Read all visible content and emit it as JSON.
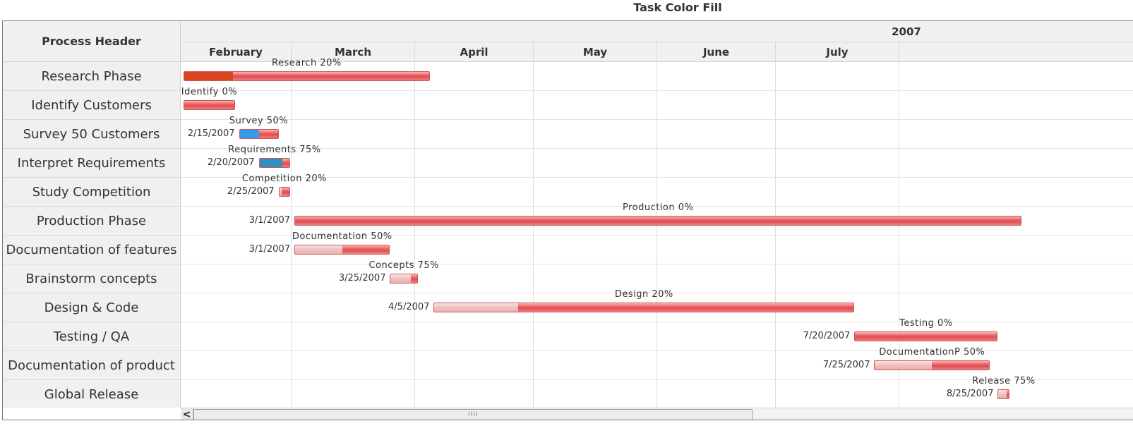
{
  "title": "Task Color Fill",
  "process_header": "Process Header",
  "colors": {
    "bar": "#e8575a",
    "research_done": "#d9451f",
    "survey_done": "#3a9ae8",
    "requirements_done": "#2f8fc0",
    "light_done": "#f3c9c9"
  },
  "chart_data": {
    "type": "gantt",
    "title": "Task Color Fill",
    "year": "2007",
    "months": [
      "February",
      "March",
      "April",
      "May",
      "June",
      "July"
    ],
    "tasks": [
      {
        "process": "Research Phase",
        "label": "Research 20%",
        "start": "2007-02-01",
        "end": "2007-04-04",
        "percent": 20,
        "date_label": "",
        "fill": "research_done"
      },
      {
        "process": "Identify Customers",
        "label": "Identify 0%",
        "start": "2007-02-01",
        "end": "2007-02-14",
        "percent": 0,
        "date_label": "",
        "fill": "research_done"
      },
      {
        "process": "Survey 50 Customers",
        "label": "Survey 50%",
        "start": "2007-02-15",
        "end": "2007-02-25",
        "percent": 50,
        "date_label": "2/15/2007",
        "fill": "survey_done"
      },
      {
        "process": "Interpret Requirements",
        "label": "Requirements 75%",
        "start": "2007-02-20",
        "end": "2007-02-28",
        "percent": 75,
        "date_label": "2/20/2007",
        "fill": "requirements_done"
      },
      {
        "process": "Study Competition",
        "label": "Competition 20%",
        "start": "2007-02-25",
        "end": "2007-02-28",
        "percent": 20,
        "date_label": "2/25/2007",
        "fill": "light_done"
      },
      {
        "process": "Production Phase",
        "label": "Production 0%",
        "start": "2007-03-01",
        "end": "2007-08-31",
        "percent": 0,
        "date_label": "3/1/2007",
        "fill": "light_done"
      },
      {
        "process": "Documentation of features",
        "label": "Documentation 50%",
        "start": "2007-03-01",
        "end": "2007-03-25",
        "percent": 50,
        "date_label": "3/1/2007",
        "fill": "light_done"
      },
      {
        "process": "Brainstorm concepts",
        "label": "Concepts 75%",
        "start": "2007-03-25",
        "end": "2007-04-01",
        "percent": 75,
        "date_label": "3/25/2007",
        "fill": "light_done"
      },
      {
        "process": "Design & Code",
        "label": "Design 20%",
        "start": "2007-04-05",
        "end": "2007-07-20",
        "percent": 20,
        "date_label": "4/5/2007",
        "fill": "light_done"
      },
      {
        "process": "Testing / QA",
        "label": "Testing 0%",
        "start": "2007-07-20",
        "end": "2007-08-25",
        "percent": 0,
        "date_label": "7/20/2007",
        "fill": "light_done"
      },
      {
        "process": "Documentation of product",
        "label": "DocumentationP 50%",
        "start": "2007-07-25",
        "end": "2007-08-23",
        "percent": 50,
        "date_label": "7/25/2007",
        "fill": "light_done"
      },
      {
        "process": "Global Release",
        "label": "Release 75%",
        "start": "2007-08-25",
        "end": "2007-08-28",
        "percent": 75,
        "date_label": "8/25/2007",
        "fill": "light_done"
      }
    ]
  },
  "scrollbar": {
    "left_arrow": "<",
    "grip": "IIII"
  }
}
